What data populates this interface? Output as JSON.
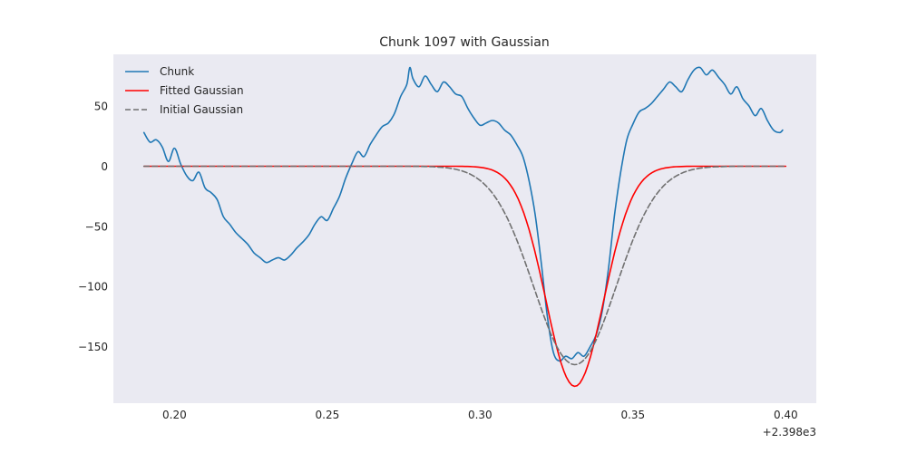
{
  "chart_data": {
    "type": "line",
    "title": "Chunk 1097 with Gaussian",
    "xlabel": "",
    "ylabel": "",
    "x_offset_label": "+2.398e3",
    "xlim": [
      0.18,
      0.41
    ],
    "ylim": [
      -197,
      93
    ],
    "x_ticks": [
      0.2,
      0.25,
      0.3,
      0.35,
      0.4
    ],
    "x_tick_labels": [
      "0.20",
      "0.25",
      "0.30",
      "0.35",
      "0.40"
    ],
    "y_ticks": [
      50,
      0,
      -50,
      -100,
      -150
    ],
    "y_tick_labels": [
      "50",
      "0",
      "−50",
      "−100",
      "−150"
    ],
    "grid": false,
    "background": "#eaeaf2",
    "legend_position": "upper-left",
    "series": [
      {
        "name": "Chunk",
        "style": "solid",
        "color": "#1f77b4",
        "x": [
          0.19,
          0.192,
          0.194,
          0.196,
          0.198,
          0.2,
          0.202,
          0.204,
          0.206,
          0.208,
          0.21,
          0.212,
          0.214,
          0.216,
          0.218,
          0.22,
          0.222,
          0.224,
          0.226,
          0.228,
          0.23,
          0.232,
          0.234,
          0.236,
          0.238,
          0.24,
          0.242,
          0.244,
          0.246,
          0.248,
          0.25,
          0.252,
          0.254,
          0.256,
          0.258,
          0.26,
          0.262,
          0.264,
          0.266,
          0.268,
          0.27,
          0.272,
          0.274,
          0.276,
          0.277,
          0.278,
          0.28,
          0.282,
          0.284,
          0.286,
          0.288,
          0.29,
          0.292,
          0.294,
          0.296,
          0.298,
          0.3,
          0.302,
          0.304,
          0.306,
          0.308,
          0.31,
          0.312,
          0.314,
          0.316,
          0.318,
          0.32,
          0.322,
          0.324,
          0.326,
          0.328,
          0.33,
          0.332,
          0.334,
          0.336,
          0.338,
          0.34,
          0.342,
          0.344,
          0.346,
          0.348,
          0.35,
          0.352,
          0.354,
          0.356,
          0.358,
          0.36,
          0.362,
          0.364,
          0.366,
          0.368,
          0.37,
          0.372,
          0.374,
          0.376,
          0.378,
          0.38,
          0.382,
          0.384,
          0.386,
          0.388,
          0.39,
          0.392,
          0.394,
          0.396,
          0.398,
          0.399
        ],
        "y": [
          28,
          20,
          22,
          16,
          4,
          15,
          2,
          -8,
          -12,
          -5,
          -18,
          -22,
          -28,
          -42,
          -48,
          -55,
          -60,
          -65,
          -72,
          -76,
          -80,
          -78,
          -76,
          -78,
          -74,
          -68,
          -63,
          -57,
          -48,
          -42,
          -45,
          -35,
          -25,
          -10,
          2,
          12,
          8,
          18,
          26,
          33,
          36,
          44,
          58,
          68,
          82,
          73,
          66,
          75,
          68,
          62,
          70,
          66,
          60,
          58,
          48,
          40,
          34,
          36,
          38,
          36,
          30,
          26,
          18,
          8,
          -12,
          -40,
          -80,
          -125,
          -155,
          -162,
          -158,
          -160,
          -155,
          -158,
          -150,
          -140,
          -120,
          -85,
          -40,
          -5,
          22,
          35,
          45,
          48,
          52,
          58,
          64,
          70,
          66,
          62,
          72,
          80,
          82,
          76,
          80,
          74,
          68,
          60,
          66,
          56,
          50,
          42,
          48,
          38,
          30,
          28,
          30
        ]
      },
      {
        "name": "Fitted Gaussian",
        "style": "solid",
        "color": "#ff0000",
        "amplitude": -183,
        "mean": 0.331,
        "sigma": 0.0095,
        "offset": 0,
        "x_range": [
          0.19,
          0.4
        ]
      },
      {
        "name": "Initial Gaussian",
        "style": "dashed",
        "color": "#707070",
        "amplitude": -165,
        "mean": 0.331,
        "sigma": 0.0135,
        "offset": 0,
        "x_range": [
          0.19,
          0.4
        ]
      }
    ]
  }
}
